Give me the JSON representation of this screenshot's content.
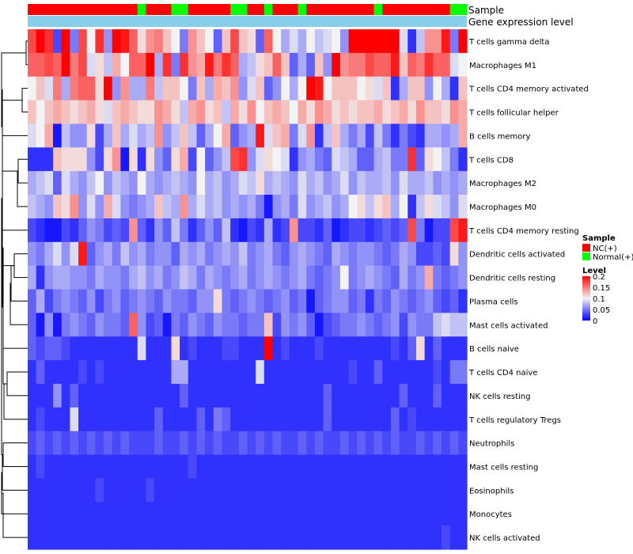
{
  "chart_data": {
    "type": "heatmap",
    "annotation_labels": {
      "sample": "Sample",
      "gene_expression": "Gene expression level"
    },
    "row_labels": [
      "T cells gamma delta",
      "Macrophages M1",
      "T cells CD4 memory activated",
      "T cells follicular helper",
      "B cells memory",
      "T cells CD8",
      "Macrophages M2",
      "Macrophages M0",
      "T cells CD4 memory resting",
      "Dendritic cells activated",
      "Dendritic cells resting",
      "Plasma cells",
      "Mast cells activated",
      "B cells naive",
      "T cells CD4 naive",
      "NK cells resting",
      "T cells regulatory  Tregs",
      "Neutrophils",
      "Mast cells resting",
      "Eosinophils",
      "Monocytes",
      "NK cells activated"
    ],
    "sample_groups": [
      "NC",
      "NC",
      "NC",
      "NC",
      "NC",
      "NC",
      "NC",
      "NC",
      "NC",
      "NC",
      "NC",
      "NC",
      "NC",
      "Normal",
      "NC",
      "NC",
      "NC",
      "Normal",
      "Normal",
      "NC",
      "NC",
      "NC",
      "NC",
      "NC",
      "Normal",
      "Normal",
      "NC",
      "NC",
      "Normal",
      "NC",
      "NC",
      "NC",
      "Normal",
      "NC",
      "NC",
      "NC",
      "NC",
      "NC",
      "NC",
      "NC",
      "NC",
      "Normal",
      "NC",
      "NC",
      "NC",
      "NC",
      "NC",
      "NC",
      "NC",
      "NC",
      "Normal",
      "Normal"
    ],
    "values": [
      [
        0.17,
        0.2,
        0.18,
        0.03,
        0.2,
        0.05,
        0.17,
        0.1,
        0.18,
        0.06,
        0.2,
        0.19,
        0.16,
        0.11,
        0.14,
        0.15,
        0.12,
        0.1,
        0.05,
        0.14,
        0.12,
        0.1,
        0.04,
        0.12,
        0.17,
        0.12,
        0.11,
        0.04,
        0.16,
        0.1,
        0.07,
        0.09,
        0.07,
        0.1,
        0.08,
        0.09,
        0.1,
        0.06,
        0.2,
        0.2,
        0.2,
        0.2,
        0.2,
        0.2,
        0.09,
        0.02,
        0.08,
        0.14,
        0.14,
        0.19,
        0.05,
        0.2
      ],
      [
        0.16,
        0.16,
        0.17,
        0.16,
        0.2,
        0.15,
        0.17,
        0.09,
        0.11,
        0.08,
        0.13,
        0.1,
        0.16,
        0.16,
        0.2,
        0.07,
        0.18,
        0.05,
        0.18,
        0.14,
        0.13,
        0.19,
        0.15,
        0.18,
        0.16,
        0.07,
        0.08,
        0.11,
        0.12,
        0.16,
        0.12,
        0.04,
        0.07,
        0.04,
        0.12,
        0.06,
        0.2,
        0.14,
        0.15,
        0.15,
        0.17,
        0.16,
        0.16,
        0.19,
        0.12,
        0.16,
        0.15,
        0.18,
        0.16,
        0.16,
        0.09,
        0.1
      ],
      [
        0.1,
        0.12,
        0.09,
        0.15,
        0.07,
        0.15,
        0.16,
        0.16,
        0.11,
        0.2,
        0.06,
        0.14,
        0.07,
        0.07,
        0.15,
        0.08,
        0.12,
        0.12,
        0.1,
        0.05,
        0.12,
        0.07,
        0.13,
        0.12,
        0.14,
        0.06,
        0.09,
        0.12,
        0.04,
        0.06,
        0.1,
        0.07,
        0.1,
        0.2,
        0.19,
        0.1,
        0.12,
        0.12,
        0.12,
        0.1,
        0.11,
        0.09,
        0.12,
        0.02,
        0.07,
        0.12,
        0.12,
        0.06,
        0.1,
        0.07,
        0.02,
        0.12
      ],
      [
        0.12,
        0.1,
        0.12,
        0.13,
        0.12,
        0.11,
        0.12,
        0.13,
        0.11,
        0.09,
        0.12,
        0.13,
        0.12,
        0.11,
        0.11,
        0.14,
        0.13,
        0.11,
        0.08,
        0.13,
        0.14,
        0.11,
        0.12,
        0.08,
        0.13,
        0.11,
        0.14,
        0.1,
        0.12,
        0.13,
        0.12,
        0.1,
        0.13,
        0.11,
        0.14,
        0.13,
        0.11,
        0.12,
        0.11,
        0.12,
        0.12,
        0.13,
        0.11,
        0.12,
        0.13,
        0.11,
        0.14,
        0.12,
        0.12,
        0.11,
        0.14,
        0.13
      ],
      [
        0.09,
        0.1,
        0.13,
        0.01,
        0.08,
        0.06,
        0.06,
        0.11,
        0.03,
        0.07,
        0.12,
        0.07,
        0.09,
        0.07,
        0.08,
        0.14,
        0.06,
        0.08,
        0.12,
        0.08,
        0.04,
        0.07,
        0.1,
        0.13,
        0.04,
        0.06,
        0.07,
        0.19,
        0.09,
        0.12,
        0.13,
        0.05,
        0.09,
        0.14,
        0.02,
        0.08,
        0.12,
        0.07,
        0.05,
        0.07,
        0.03,
        0.08,
        0.05,
        0.02,
        0.05,
        0.03,
        0.02,
        0.07,
        0.07,
        0.06,
        0.07,
        0.13
      ],
      [
        0.02,
        0.02,
        0.02,
        0.12,
        0.11,
        0.11,
        0.11,
        0.06,
        0.03,
        0.11,
        0.14,
        0.01,
        0.11,
        0.02,
        0.11,
        0.06,
        0.04,
        0.11,
        0.13,
        0.03,
        0.1,
        0.04,
        0.06,
        0.08,
        0.17,
        0.18,
        0.06,
        0.09,
        0.11,
        0.1,
        0.09,
        0.02,
        0.06,
        0.07,
        0.05,
        0.04,
        0.09,
        0.08,
        0.07,
        0.04,
        0.04,
        0.07,
        0.08,
        0.05,
        0.05,
        0.18,
        0.04,
        0.11,
        0.1,
        0.08,
        0.05,
        0.02
      ],
      [
        0.07,
        0.08,
        0.09,
        0.04,
        0.09,
        0.07,
        0.06,
        0.08,
        0.1,
        0.06,
        0.08,
        0.07,
        0.06,
        0.1,
        0.07,
        0.06,
        0.07,
        0.08,
        0.07,
        0.06,
        0.1,
        0.07,
        0.08,
        0.06,
        0.07,
        0.09,
        0.08,
        0.11,
        0.07,
        0.08,
        0.07,
        0.06,
        0.09,
        0.07,
        0.08,
        0.06,
        0.07,
        0.09,
        0.06,
        0.08,
        0.07,
        0.07,
        0.08,
        0.06,
        0.09,
        0.07,
        0.07,
        0.08,
        0.06,
        0.07,
        0.06,
        0.07
      ],
      [
        0.08,
        0.07,
        0.06,
        0.12,
        0.11,
        0.14,
        0.06,
        0.09,
        0.06,
        0.13,
        0.09,
        0.06,
        0.05,
        0.06,
        0.07,
        0.12,
        0.08,
        0.07,
        0.14,
        0.07,
        0.09,
        0.07,
        0.08,
        0.06,
        0.07,
        0.06,
        0.07,
        0.05,
        0.01,
        0.06,
        0.07,
        0.05,
        0.09,
        0.06,
        0.07,
        0.08,
        0.06,
        0.07,
        0.1,
        0.11,
        0.08,
        0.11,
        0.12,
        0.07,
        0.1,
        0.02,
        0.08,
        0.11,
        0.09,
        0.08,
        0.06,
        0.09
      ],
      [
        0.03,
        0.02,
        0.01,
        0.01,
        0.03,
        0.02,
        0.04,
        0.06,
        0.05,
        0.03,
        0.04,
        0.03,
        0.14,
        0.04,
        0.02,
        0.06,
        0.04,
        0.08,
        0.05,
        0.02,
        0.04,
        0.06,
        0.04,
        0.08,
        0.02,
        0.01,
        0.03,
        0.02,
        0.07,
        0.02,
        0.03,
        0.14,
        0.03,
        0.03,
        0.02,
        0.04,
        0.01,
        0.02,
        0.03,
        0.03,
        0.02,
        0.03,
        0.04,
        0.03,
        0.04,
        0.17,
        0.05,
        0.01,
        0.03,
        0.03,
        0.17,
        0.19
      ],
      [
        0.06,
        0.05,
        0.07,
        0.09,
        0.06,
        0.09,
        0.19,
        0.04,
        0.06,
        0.07,
        0.05,
        0.08,
        0.06,
        0.07,
        0.05,
        0.06,
        0.06,
        0.04,
        0.07,
        0.06,
        0.07,
        0.05,
        0.06,
        0.07,
        0.06,
        0.08,
        0.05,
        0.06,
        0.07,
        0.05,
        0.04,
        0.06,
        0.07,
        0.06,
        0.05,
        0.04,
        0.07,
        0.06,
        0.05,
        0.06,
        0.06,
        0.05,
        0.04,
        0.05,
        0.07,
        0.06,
        0.03,
        0.03,
        0.04,
        0.03,
        0.11,
        0.06
      ],
      [
        0.07,
        0.02,
        0.06,
        0.07,
        0.07,
        0.06,
        0.06,
        0.05,
        0.07,
        0.06,
        0.06,
        0.05,
        0.07,
        0.08,
        0.06,
        0.07,
        0.05,
        0.06,
        0.08,
        0.07,
        0.05,
        0.07,
        0.06,
        0.05,
        0.06,
        0.07,
        0.05,
        0.06,
        0.07,
        0.06,
        0.05,
        0.06,
        0.07,
        0.05,
        0.04,
        0.05,
        0.06,
        0.1,
        0.05,
        0.06,
        0.07,
        0.06,
        0.05,
        0.04,
        0.07,
        0.05,
        0.06,
        0.13,
        0.05,
        0.04,
        0.05,
        0.06
      ],
      [
        0.04,
        0.07,
        0.03,
        0.05,
        0.06,
        0.05,
        0.04,
        0.06,
        0.03,
        0.05,
        0.06,
        0.04,
        0.05,
        0.06,
        0.05,
        0.04,
        0.06,
        0.05,
        0.05,
        0.04,
        0.06,
        0.06,
        0.11,
        0.05,
        0.04,
        0.05,
        0.06,
        0.05,
        0.04,
        0.05,
        0.06,
        0.04,
        0.05,
        0.01,
        0.04,
        0.05,
        0.06,
        0.06,
        0.04,
        0.05,
        0.02,
        0.05,
        0.04,
        0.06,
        0.05,
        0.04,
        0.05,
        0.06,
        0.04,
        0.03,
        0.04,
        0.02
      ],
      [
        0.04,
        0.01,
        0.06,
        0.01,
        0.05,
        0.06,
        0.05,
        0.04,
        0.06,
        0.05,
        0.05,
        0.04,
        0.16,
        0.06,
        0.03,
        0.04,
        0.01,
        0.05,
        0.04,
        0.06,
        0.05,
        0.04,
        0.06,
        0.05,
        0.05,
        0.04,
        0.05,
        0.05,
        0.12,
        0.03,
        0.06,
        0.05,
        0.06,
        0.04,
        0.01,
        0.03,
        0.04,
        0.05,
        0.05,
        0.06,
        0.05,
        0.04,
        0.05,
        0.06,
        0.03,
        0.06,
        0.05,
        0.05,
        0.08,
        0.09,
        0.08,
        0.08
      ],
      [
        0.04,
        0.03,
        0.04,
        0.04,
        0.03,
        0.02,
        0.02,
        0.02,
        0.02,
        0.02,
        0.02,
        0.02,
        0.02,
        0.09,
        0.02,
        0.02,
        0.02,
        0.11,
        0.02,
        0.03,
        0.02,
        0.02,
        0.02,
        0.03,
        0.03,
        0.02,
        0.02,
        0.02,
        0.2,
        0.02,
        0.03,
        0.02,
        0.02,
        0.02,
        0.03,
        0.02,
        0.02,
        0.02,
        0.02,
        0.02,
        0.02,
        0.02,
        0.02,
        0.03,
        0.02,
        0.04,
        0.11,
        0.02,
        0.04,
        0.02,
        0.02,
        0.02
      ],
      [
        0.02,
        0.04,
        0.02,
        0.02,
        0.02,
        0.02,
        0.03,
        0.02,
        0.03,
        0.02,
        0.02,
        0.02,
        0.02,
        0.02,
        0.02,
        0.02,
        0.02,
        0.07,
        0.07,
        0.02,
        0.02,
        0.02,
        0.02,
        0.02,
        0.02,
        0.02,
        0.02,
        0.09,
        0.02,
        0.02,
        0.02,
        0.02,
        0.02,
        0.02,
        0.02,
        0.02,
        0.02,
        0.02,
        0.03,
        0.02,
        0.02,
        0.04,
        0.02,
        0.02,
        0.02,
        0.02,
        0.02,
        0.02,
        0.03,
        0.02,
        0.05,
        0.05
      ],
      [
        0.02,
        0.02,
        0.02,
        0.06,
        0.02,
        0.04,
        0.02,
        0.02,
        0.02,
        0.02,
        0.02,
        0.02,
        0.02,
        0.02,
        0.02,
        0.02,
        0.02,
        0.02,
        0.04,
        0.02,
        0.02,
        0.02,
        0.02,
        0.02,
        0.02,
        0.02,
        0.02,
        0.02,
        0.02,
        0.02,
        0.02,
        0.02,
        0.02,
        0.02,
        0.02,
        0.04,
        0.02,
        0.02,
        0.02,
        0.02,
        0.02,
        0.02,
        0.02,
        0.02,
        0.04,
        0.02,
        0.02,
        0.02,
        0.04,
        0.02,
        0.02,
        0.02
      ],
      [
        0.02,
        0.03,
        0.02,
        0.02,
        0.02,
        0.09,
        0.02,
        0.02,
        0.02,
        0.02,
        0.02,
        0.02,
        0.02,
        0.02,
        0.02,
        0.04,
        0.02,
        0.02,
        0.02,
        0.02,
        0.04,
        0.02,
        0.05,
        0.04,
        0.02,
        0.02,
        0.02,
        0.02,
        0.02,
        0.02,
        0.02,
        0.02,
        0.02,
        0.02,
        0.02,
        0.04,
        0.02,
        0.02,
        0.02,
        0.02,
        0.02,
        0.02,
        0.02,
        0.04,
        0.02,
        0.03,
        0.02,
        0.02,
        0.02,
        0.02,
        0.02,
        0.02
      ],
      [
        0.03,
        0.04,
        0.03,
        0.04,
        0.03,
        0.04,
        0.03,
        0.04,
        0.03,
        0.04,
        0.03,
        0.04,
        0.03,
        0.03,
        0.03,
        0.04,
        0.03,
        0.03,
        0.04,
        0.03,
        0.04,
        0.03,
        0.04,
        0.03,
        0.03,
        0.04,
        0.03,
        0.04,
        0.03,
        0.04,
        0.03,
        0.03,
        0.04,
        0.03,
        0.04,
        0.03,
        0.03,
        0.04,
        0.03,
        0.04,
        0.03,
        0.04,
        0.03,
        0.04,
        0.03,
        0.03,
        0.04,
        0.03,
        0.04,
        0.03,
        0.04,
        0.03
      ],
      [
        0.02,
        0.03,
        0.02,
        0.02,
        0.02,
        0.02,
        0.02,
        0.02,
        0.02,
        0.02,
        0.02,
        0.02,
        0.02,
        0.02,
        0.02,
        0.02,
        0.02,
        0.02,
        0.02,
        0.03,
        0.02,
        0.02,
        0.02,
        0.02,
        0.02,
        0.02,
        0.02,
        0.02,
        0.02,
        0.02,
        0.02,
        0.02,
        0.02,
        0.02,
        0.02,
        0.02,
        0.02,
        0.02,
        0.02,
        0.02,
        0.02,
        0.02,
        0.02,
        0.02,
        0.02,
        0.02,
        0.02,
        0.02,
        0.02,
        0.02,
        0.02,
        0.02
      ],
      [
        0.02,
        0.02,
        0.02,
        0.02,
        0.02,
        0.02,
        0.02,
        0.02,
        0.03,
        0.02,
        0.02,
        0.02,
        0.02,
        0.02,
        0.03,
        0.02,
        0.02,
        0.02,
        0.02,
        0.02,
        0.02,
        0.02,
        0.02,
        0.02,
        0.02,
        0.02,
        0.02,
        0.02,
        0.02,
        0.02,
        0.02,
        0.02,
        0.02,
        0.02,
        0.02,
        0.02,
        0.02,
        0.02,
        0.02,
        0.02,
        0.02,
        0.02,
        0.02,
        0.02,
        0.02,
        0.02,
        0.02,
        0.02,
        0.02,
        0.02,
        0.02,
        0.02
      ],
      [
        0.02,
        0.02,
        0.02,
        0.02,
        0.02,
        0.02,
        0.02,
        0.02,
        0.02,
        0.02,
        0.02,
        0.02,
        0.02,
        0.02,
        0.02,
        0.02,
        0.02,
        0.02,
        0.02,
        0.02,
        0.02,
        0.02,
        0.02,
        0.02,
        0.02,
        0.02,
        0.02,
        0.02,
        0.02,
        0.02,
        0.02,
        0.02,
        0.02,
        0.02,
        0.02,
        0.02,
        0.02,
        0.02,
        0.02,
        0.02,
        0.02,
        0.02,
        0.02,
        0.02,
        0.02,
        0.02,
        0.02,
        0.02,
        0.02,
        0.02,
        0.02,
        0.02
      ],
      [
        0.02,
        0.02,
        0.02,
        0.02,
        0.02,
        0.02,
        0.02,
        0.02,
        0.02,
        0.02,
        0.02,
        0.02,
        0.02,
        0.02,
        0.02,
        0.02,
        0.02,
        0.02,
        0.02,
        0.02,
        0.02,
        0.02,
        0.02,
        0.02,
        0.02,
        0.02,
        0.02,
        0.02,
        0.02,
        0.02,
        0.02,
        0.02,
        0.02,
        0.02,
        0.02,
        0.02,
        0.02,
        0.02,
        0.02,
        0.02,
        0.02,
        0.02,
        0.02,
        0.02,
        0.02,
        0.02,
        0.02,
        0.02,
        0.02,
        0.03,
        0.02,
        0.02
      ]
    ],
    "value_range": [
      0,
      0.2
    ],
    "colors": {
      "low": "#0000ff",
      "mid": "#f3f3f3",
      "high": "#ff0000",
      "nc": "#ff0000",
      "normal": "#00ff00",
      "gene_expression": "#87ceeb"
    },
    "legend": {
      "sample_title": "Sample",
      "sample_items": [
        {
          "label": "NC(+)",
          "color": "#ff0000"
        },
        {
          "label": "Normal(+)",
          "color": "#00ff00"
        }
      ],
      "level_title": "Level",
      "level_ticks": [
        {
          "value": 0.2,
          "label": "0.2"
        },
        {
          "value": 0.15,
          "label": "0.15"
        },
        {
          "value": 0.1,
          "label": "0.1"
        },
        {
          "value": 0.05,
          "label": "0.05"
        },
        {
          "value": 0,
          "label": "0"
        }
      ]
    }
  }
}
